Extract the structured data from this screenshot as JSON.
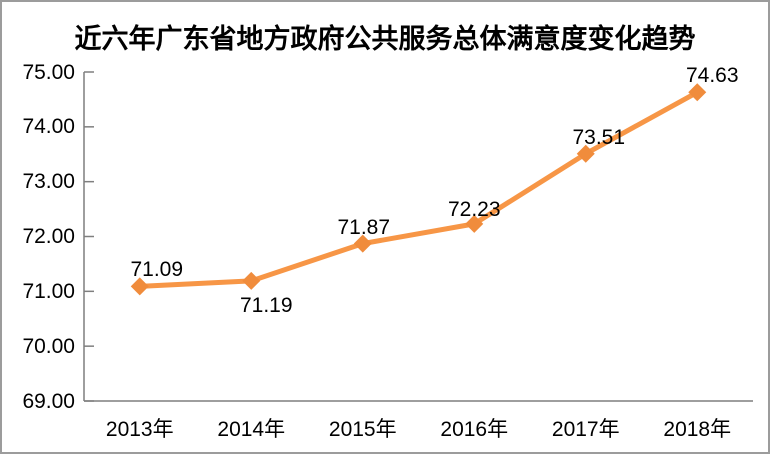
{
  "chart_data": {
    "type": "line",
    "title": "近六年广东省地方政府公共服务总体满意度变化趋势",
    "categories": [
      "2013年",
      "2014年",
      "2015年",
      "2016年",
      "2017年",
      "2018年"
    ],
    "values": [
      71.09,
      71.19,
      71.87,
      72.23,
      73.51,
      74.63
    ],
    "data_labels": [
      "71.09",
      "71.19",
      "71.87",
      "72.23",
      "73.51",
      "74.63"
    ],
    "y_ticks": [
      75,
      74,
      73,
      72,
      71,
      70,
      69
    ],
    "y_tick_labels": [
      "75.00",
      "74.00",
      "73.00",
      "72.00",
      "71.00",
      "70.00",
      "69.00"
    ],
    "ylim": [
      69,
      75
    ],
    "xlabel": "",
    "ylabel": "",
    "grid": false,
    "legend_position": "none",
    "marker_shape": "diamond",
    "colors": {
      "line": "#F79646",
      "marker": "#F08C3C",
      "axis": "#7F7F7F",
      "text": "#000000",
      "frame_border": "#9C9C9C"
    }
  }
}
